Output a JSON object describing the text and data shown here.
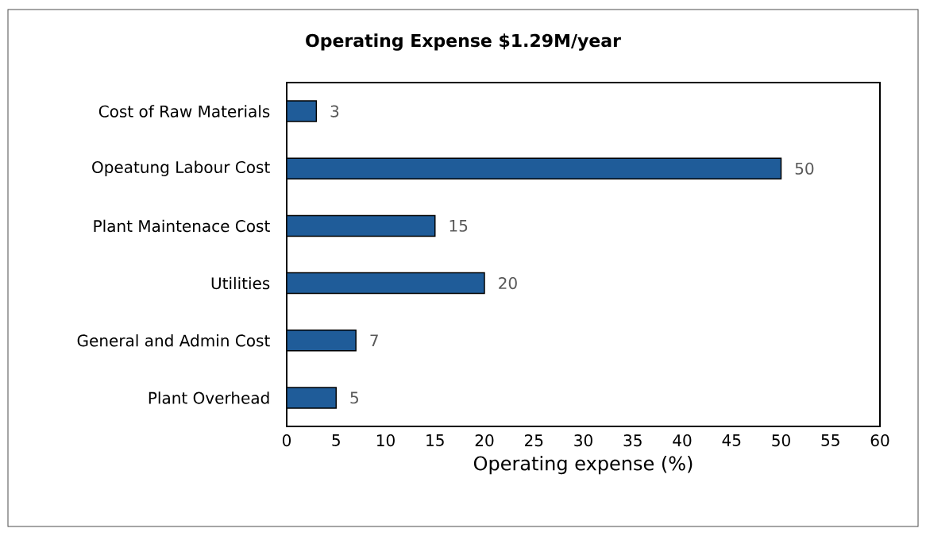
{
  "chart_data": {
    "type": "bar",
    "orientation": "horizontal",
    "title": "Operating Expense $1.29M/year",
    "xlabel": "Operating expense (%)",
    "categories": [
      "Cost of Raw Materials",
      "Opeatung Labour Cost",
      "Plant Maintenace Cost",
      "Utilities",
      "General and Admin Cost",
      "Plant Overhead"
    ],
    "values": [
      3,
      50,
      15,
      20,
      7,
      5
    ],
    "color": "#1f5c99",
    "data_labels": true,
    "xlim": [
      0,
      60
    ],
    "xticks": [
      0,
      5,
      10,
      15,
      20,
      25,
      30,
      35,
      40,
      45,
      50,
      55,
      60
    ]
  }
}
